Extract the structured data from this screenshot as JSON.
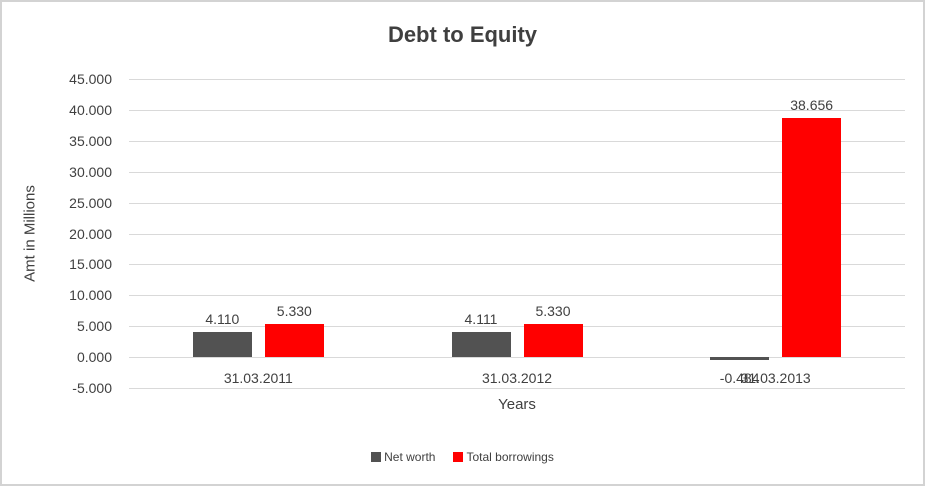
{
  "chart_data": {
    "type": "bar",
    "title": "Debt to Equity",
    "xlabel": "Years",
    "ylabel": "Amt in Millions",
    "categories": [
      "31.03.2011",
      "31.03.2012",
      "31.03.2013"
    ],
    "series": [
      {
        "name": "Net worth",
        "color": "#525252",
        "values": [
          4.11,
          4.111,
          -0.484
        ],
        "labels": [
          "4.110",
          "4.111",
          "-0.484"
        ]
      },
      {
        "name": "Total borrowings",
        "color": "#ff0000",
        "values": [
          5.33,
          5.33,
          38.656
        ],
        "labels": [
          "5.330",
          "5.330",
          "38.656"
        ]
      }
    ],
    "ylim": [
      -5,
      45
    ],
    "ytick_step": 5,
    "ytick_labels": [
      "45.000",
      "40.000",
      "35.000",
      "30.000",
      "25.000",
      "20.000",
      "15.000",
      "10.000",
      "5.000",
      "0.000",
      "-5.000"
    ],
    "grid": "on",
    "legend_position": "bottom",
    "colors": {
      "gridline": "#d9d9d9",
      "axis_text": "#404040",
      "title_text": "#3f3f3f",
      "frame_border": "#d3d3d3"
    }
  }
}
